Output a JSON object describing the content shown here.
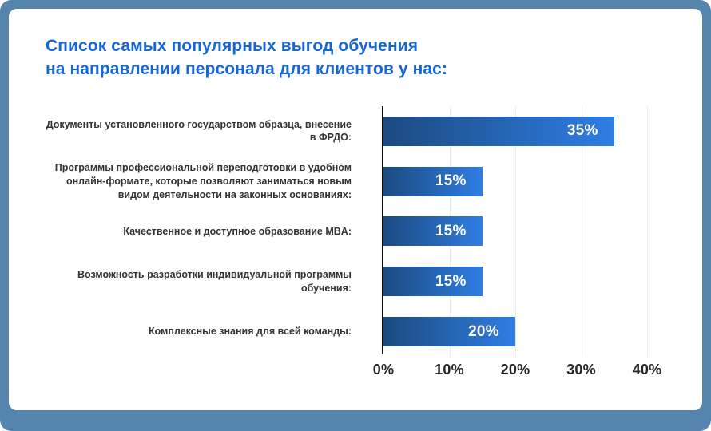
{
  "page": {
    "background_color": "#5584AD",
    "card_color": "#FFFFFF"
  },
  "title": {
    "line1": "Список самых популярных выгод обучения",
    "line2": "на направлении персонала для клиентов у нас:",
    "color": "#1566D6"
  },
  "chart_data": {
    "type": "bar",
    "orientation": "horizontal",
    "categories": [
      "Документы установленного государством образца, внесение в ФРДО:",
      "Программы профессиональной переподготовки в удобном онлайн-формате, которые позволяют заниматься новым видом деятельности на законных основаниях:",
      "Качественное и доступное образование MBA:",
      "Возможность разработки индивидуальной программы обучения:",
      "Комплексные знания для всей команды:"
    ],
    "values": [
      35,
      15,
      15,
      15,
      20
    ],
    "value_labels": [
      "35%",
      "15%",
      "15%",
      "15%",
      "20%"
    ],
    "x_ticks": [
      "0%",
      "10%",
      "20%",
      "30%",
      "40%"
    ],
    "xlim": [
      0,
      40
    ],
    "grid": "vertical-light-gray",
    "legend": "none",
    "bar_gradient": [
      "#1B4A80",
      "#2F7EE3"
    ],
    "value_label_color": "#FFFFFF",
    "category_label_color": "#333333",
    "tick_label_color": "#262626"
  }
}
